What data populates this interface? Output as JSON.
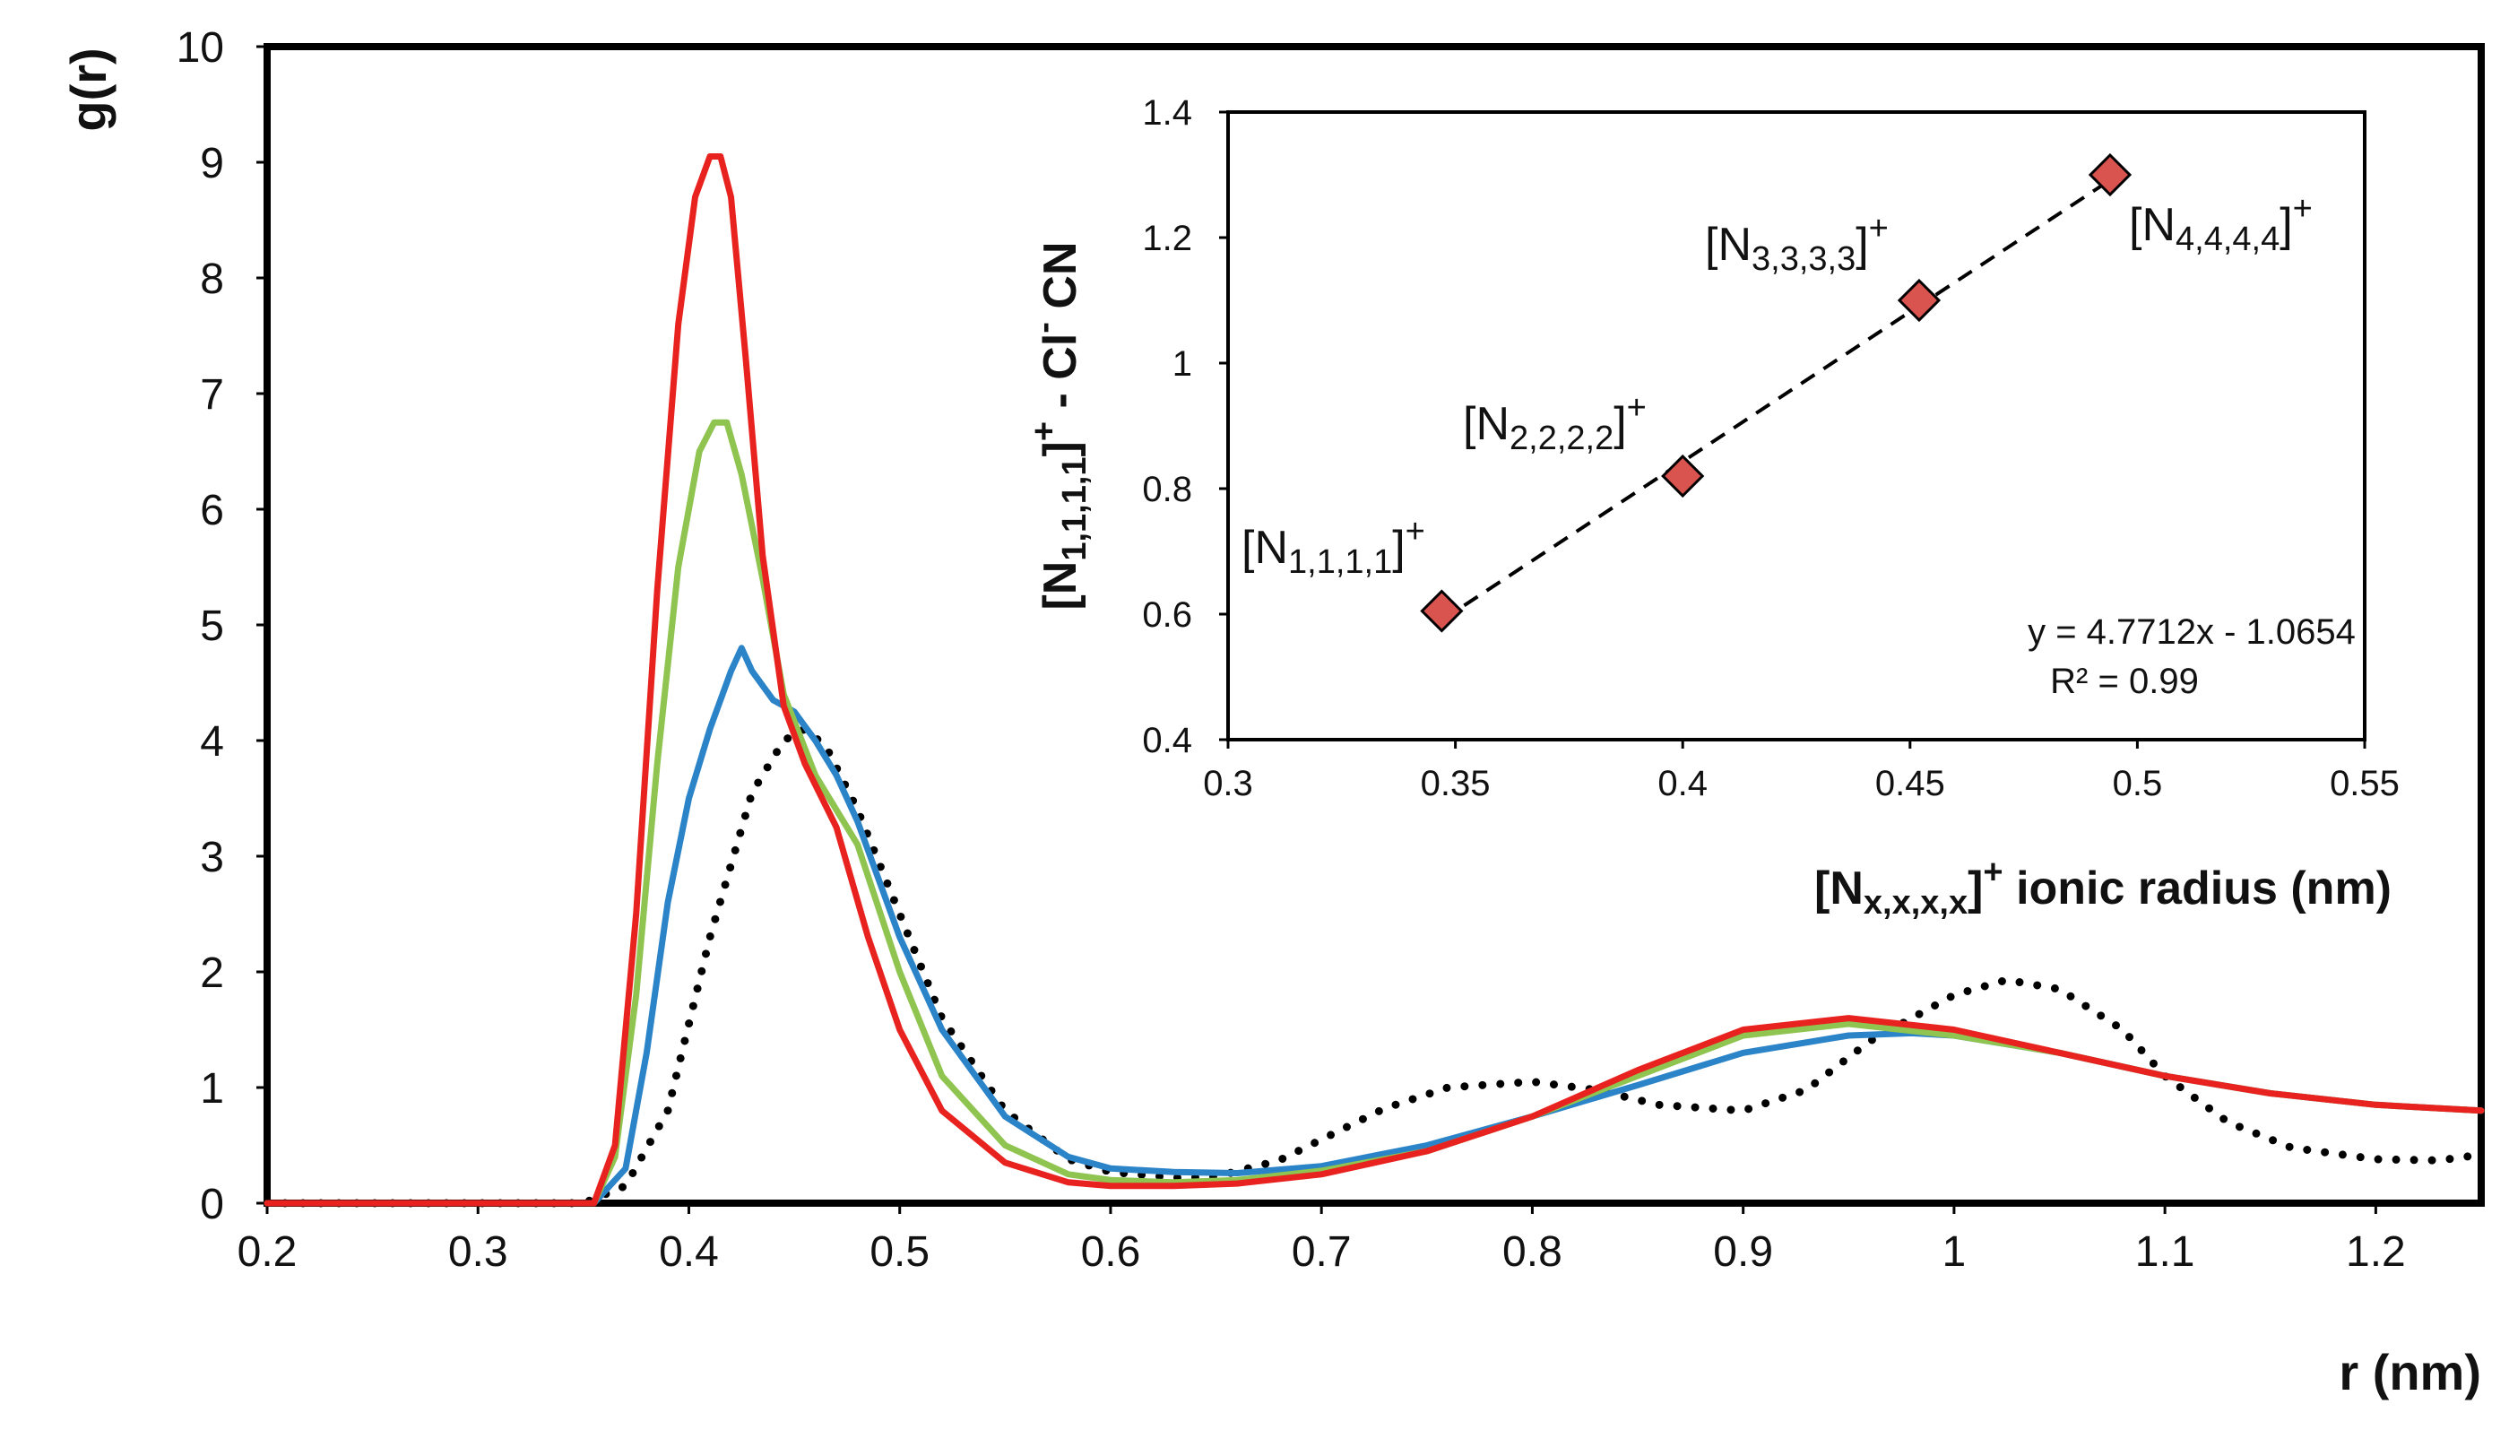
{
  "chart_data": [
    {
      "type": "line",
      "title": "",
      "xlabel": "r (nm)",
      "ylabel": "g(r)",
      "xlim": [
        0.2,
        1.25
      ],
      "ylim": [
        0,
        10
      ],
      "xticks": [
        "0.2",
        "0.3",
        "0.4",
        "0.5",
        "0.6",
        "0.7",
        "0.8",
        "0.9",
        "1",
        "1.1",
        "1.2"
      ],
      "yticks": [
        "0",
        "1",
        "2",
        "3",
        "4",
        "5",
        "6",
        "7",
        "8",
        "9",
        "10"
      ],
      "grid": false,
      "legend": "none",
      "series": [
        {
          "name": "black dotted",
          "color": "#000000",
          "style": "dotted",
          "x": [
            0.2,
            0.35,
            0.37,
            0.39,
            0.41,
            0.43,
            0.445,
            0.455,
            0.465,
            0.48,
            0.5,
            0.52,
            0.55,
            0.58,
            0.6,
            0.63,
            0.65,
            0.68,
            0.7,
            0.73,
            0.76,
            0.8,
            0.83,
            0.86,
            0.9,
            0.93,
            0.96,
            1.0,
            1.025,
            1.05,
            1.08,
            1.1,
            1.13,
            1.16,
            1.2,
            1.23,
            1.25
          ],
          "y": [
            0.0,
            0.0,
            0.15,
            0.8,
            2.3,
            3.55,
            4.0,
            4.1,
            3.95,
            3.4,
            2.5,
            1.6,
            0.8,
            0.38,
            0.27,
            0.22,
            0.23,
            0.37,
            0.55,
            0.82,
            1.0,
            1.05,
            0.98,
            0.85,
            0.8,
            0.98,
            1.4,
            1.8,
            1.93,
            1.85,
            1.5,
            1.1,
            0.7,
            0.48,
            0.38,
            0.37,
            0.42
          ]
        },
        {
          "name": "blue",
          "color": "#2b83c8",
          "style": "solid",
          "x": [
            0.2,
            0.355,
            0.37,
            0.38,
            0.39,
            0.4,
            0.41,
            0.42,
            0.425,
            0.43,
            0.44,
            0.45,
            0.46,
            0.47,
            0.48,
            0.5,
            0.52,
            0.55,
            0.58,
            0.6,
            0.63,
            0.66,
            0.7,
            0.75,
            0.8,
            0.85,
            0.9,
            0.95,
            0.98,
            1.0,
            1.05,
            1.1,
            1.15,
            1.2,
            1.25
          ],
          "y": [
            0.0,
            0.0,
            0.3,
            1.3,
            2.6,
            3.5,
            4.1,
            4.6,
            4.8,
            4.6,
            4.35,
            4.25,
            4.0,
            3.7,
            3.3,
            2.3,
            1.5,
            0.75,
            0.4,
            0.3,
            0.27,
            0.26,
            0.32,
            0.5,
            0.75,
            1.02,
            1.3,
            1.45,
            1.47,
            1.45,
            1.3,
            1.1,
            0.95,
            0.85,
            0.8
          ]
        },
        {
          "name": "green",
          "color": "#8ec44f",
          "style": "solid",
          "x": [
            0.2,
            0.355,
            0.365,
            0.375,
            0.385,
            0.395,
            0.405,
            0.412,
            0.418,
            0.425,
            0.435,
            0.445,
            0.46,
            0.48,
            0.5,
            0.52,
            0.55,
            0.58,
            0.6,
            0.63,
            0.66,
            0.7,
            0.75,
            0.8,
            0.85,
            0.9,
            0.95,
            1.0,
            1.05,
            1.1,
            1.15,
            1.2,
            1.25
          ],
          "y": [
            0.0,
            0.0,
            0.4,
            1.8,
            3.8,
            5.5,
            6.5,
            6.75,
            6.75,
            6.3,
            5.4,
            4.4,
            3.7,
            3.1,
            2.0,
            1.1,
            0.5,
            0.25,
            0.2,
            0.18,
            0.2,
            0.28,
            0.45,
            0.75,
            1.1,
            1.45,
            1.55,
            1.45,
            1.3,
            1.1,
            0.95,
            0.85,
            0.8
          ]
        },
        {
          "name": "red",
          "color": "#e8221e",
          "style": "solid",
          "x": [
            0.2,
            0.355,
            0.365,
            0.375,
            0.385,
            0.395,
            0.403,
            0.41,
            0.415,
            0.42,
            0.427,
            0.435,
            0.445,
            0.455,
            0.47,
            0.485,
            0.5,
            0.52,
            0.55,
            0.58,
            0.6,
            0.63,
            0.66,
            0.7,
            0.75,
            0.8,
            0.85,
            0.9,
            0.95,
            1.0,
            1.05,
            1.1,
            1.15,
            1.2,
            1.25
          ],
          "y": [
            0.0,
            0.0,
            0.5,
            2.5,
            5.3,
            7.6,
            8.7,
            9.05,
            9.05,
            8.7,
            7.3,
            5.6,
            4.3,
            3.8,
            3.25,
            2.3,
            1.5,
            0.8,
            0.35,
            0.18,
            0.15,
            0.15,
            0.17,
            0.25,
            0.45,
            0.75,
            1.15,
            1.5,
            1.6,
            1.5,
            1.3,
            1.1,
            0.95,
            0.85,
            0.8
          ]
        }
      ]
    },
    {
      "type": "scatter",
      "title": "",
      "xlabel": "[Nx,x,x,x]+ ionic radius (nm)",
      "ylabel": "[N1,1,1,1]+ - Cl- CN",
      "xlim": [
        0.3,
        0.55
      ],
      "ylim": [
        0.4,
        1.4
      ],
      "xticks": [
        "0.3",
        "0.35",
        "0.4",
        "0.45",
        "0.5",
        "0.55"
      ],
      "yticks": [
        "0.4",
        "0.6",
        "0.8",
        "1",
        "1.2",
        "1.4"
      ],
      "grid": false,
      "marker": "diamond",
      "marker_color": "#d9534f",
      "points": [
        {
          "label": "[N1,1,1,1]+",
          "x": 0.347,
          "y": 0.605
        },
        {
          "label": "[N2,2,2,2]+",
          "x": 0.4,
          "y": 0.82
        },
        {
          "label": "[N3,3,3,3]+",
          "x": 0.452,
          "y": 1.1
        },
        {
          "label": "[N4,4,4,4]+",
          "x": 0.494,
          "y": 1.3
        }
      ],
      "trendline": {
        "style": "dashed",
        "slope": 4.7712,
        "intercept": -1.0654,
        "equation": "y = 4.7712x - 1.0654",
        "r2": "R² = 0.99"
      }
    }
  ],
  "labels": {
    "main_ylabel": "g(r)",
    "main_xlabel": "r (nm)",
    "inset_ylabel_parts": {
      "b1": "[N",
      "s1": "1,1,1,1",
      "b2": "]",
      "p1": "+",
      "b3": " - Cl",
      "p2": "-",
      "b4": " CN"
    },
    "inset_xlabel_parts": {
      "b1": "[N",
      "s1": "x,x,x,x",
      "b2": "]",
      "p1": "+",
      "b3": " ionic radius (nm)"
    },
    "point_labels": [
      {
        "pre": "[N",
        "sub": "1,1,1,1",
        "post": "]",
        "sup": "+"
      },
      {
        "pre": "[N",
        "sub": "2,2,2,2",
        "post": "]",
        "sup": "+"
      },
      {
        "pre": "[N",
        "sub": "3,3,3,3",
        "post": "]",
        "sup": "+"
      },
      {
        "pre": "[N",
        "sub": "4,4,4,4",
        "post": "]",
        "sup": "+"
      }
    ],
    "equation": "y = 4.7712x - 1.0654",
    "r2": "R² = 0.99"
  }
}
